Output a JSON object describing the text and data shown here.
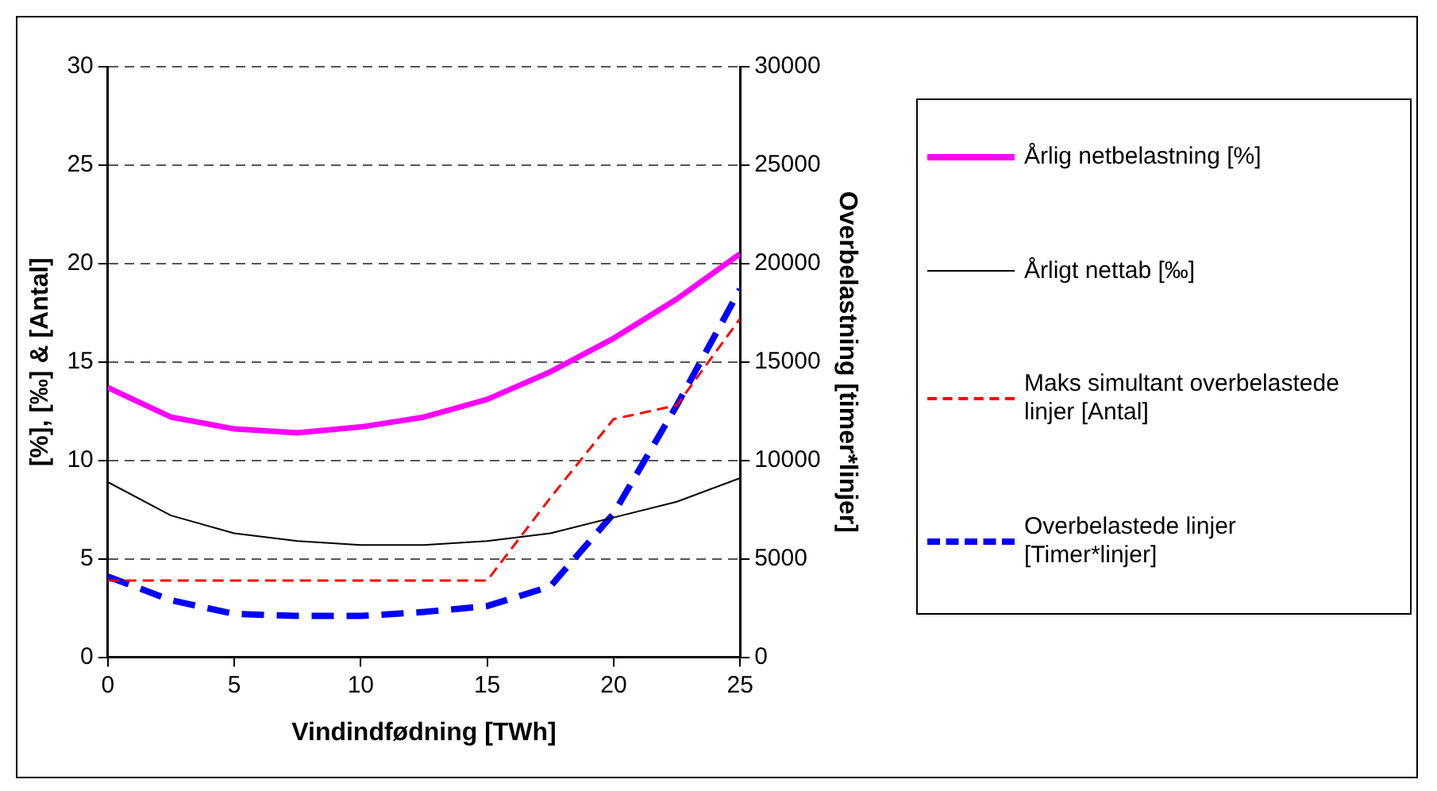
{
  "chart_data": {
    "type": "line",
    "xlabel": "Vindindfødning [TWh]",
    "ylabel": "[%], [‰] & [Antal]",
    "y2label": "Overbelastning [timer*linjer]",
    "x": [
      0,
      2.5,
      5,
      7.5,
      10,
      12.5,
      15,
      17.5,
      20,
      22.5,
      25
    ],
    "xlim": [
      0,
      25
    ],
    "xticks": [
      0,
      5,
      10,
      15,
      20,
      25
    ],
    "ylim": [
      0,
      30
    ],
    "yticks": [
      0,
      5,
      10,
      15,
      20,
      25,
      30
    ],
    "y2lim": [
      0,
      30000
    ],
    "y2ticks": [
      0,
      5000,
      10000,
      15000,
      20000,
      25000,
      30000
    ],
    "grid": "y",
    "legend": "right",
    "marker": "none",
    "series": [
      {
        "name": "Årlig netbelastning [%]",
        "color": "#ff00ff",
        "values": [
          13.7,
          12.2,
          11.6,
          11.4,
          11.7,
          12.2,
          13.1,
          14.5,
          16.2,
          18.2,
          20.5
        ]
      },
      {
        "name": "Årligt nettab [‰]",
        "color": "#000000",
        "values": [
          8.9,
          7.2,
          6.3,
          5.9,
          5.7,
          5.7,
          5.9,
          6.3,
          7.1,
          7.9,
          9.1
        ]
      },
      {
        "name": "Maks simultant overbelastede linjer [Antal]",
        "color": "#ff0000",
        "line_style": "dashed",
        "values": [
          3.9,
          3.9,
          3.9,
          3.9,
          3.9,
          3.9,
          3.9,
          8.1,
          12.1,
          12.8,
          17.2
        ]
      },
      {
        "name": "Overbelastede linjer [Timer*linjer]",
        "color": "#0000ff",
        "line_style": "dashed",
        "axis": "y2",
        "values": [
          4100,
          2900,
          2200,
          2100,
          2100,
          2300,
          2600,
          3600,
          7300,
          12800,
          18700
        ]
      }
    ]
  }
}
